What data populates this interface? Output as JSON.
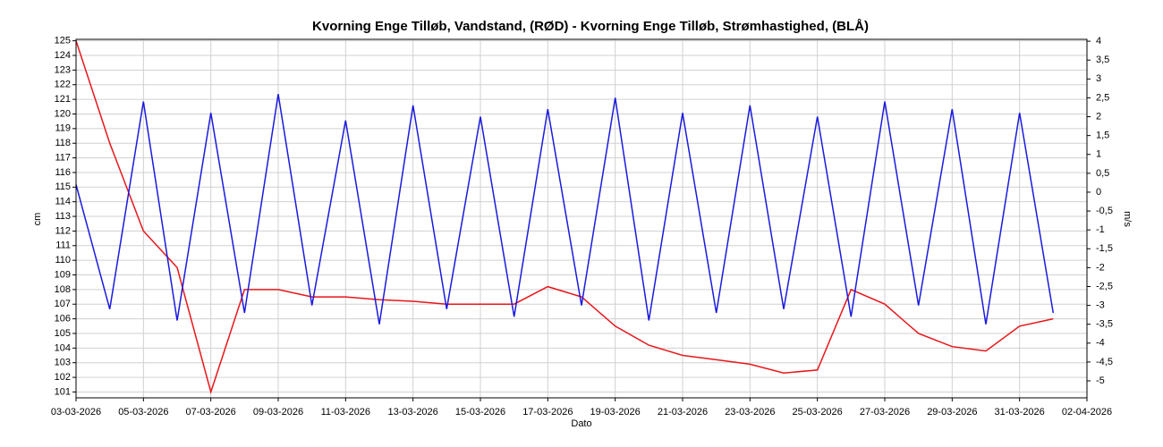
{
  "chart_data": {
    "type": "line",
    "title": "Kvorning Enge Tilløb, Vandstand, (RØD)  -  Kvorning Enge Tilløb, Strømhastighed, (BLÅ)",
    "xlabel": "Dato",
    "ylabel": "cm",
    "y2label": "m/s",
    "grid": true,
    "x": [
      "03-03-2026",
      "04-03-2026",
      "05-03-2026",
      "06-03-2026",
      "07-03-2026",
      "08-03-2026",
      "09-03-2026",
      "10-03-2026",
      "11-03-2026",
      "12-03-2026",
      "13-03-2026",
      "14-03-2026",
      "15-03-2026",
      "16-03-2026",
      "17-03-2026",
      "18-03-2026",
      "19-03-2026",
      "20-03-2026",
      "21-03-2026",
      "22-03-2026",
      "23-03-2026",
      "24-03-2026",
      "25-03-2026",
      "26-03-2026",
      "27-03-2026",
      "28-03-2026",
      "29-03-2026",
      "30-03-2026",
      "31-03-2026",
      "01-04-2026"
    ],
    "xlim": [
      "03-03-2026",
      "02-04-2026"
    ],
    "xticks": [
      "03-03-2026",
      "05-03-2026",
      "07-03-2026",
      "09-03-2026",
      "11-03-2026",
      "13-03-2026",
      "15-03-2026",
      "17-03-2026",
      "19-03-2026",
      "21-03-2026",
      "23-03-2026",
      "25-03-2026",
      "27-03-2026",
      "29-03-2026",
      "31-03-2026",
      "02-04-2026"
    ],
    "ylim": [
      100.6,
      125.1
    ],
    "yticks": [
      101,
      102,
      103,
      104,
      105,
      106,
      107,
      108,
      109,
      110,
      111,
      112,
      113,
      114,
      115,
      116,
      117,
      118,
      119,
      120,
      121,
      122,
      123,
      124,
      125
    ],
    "y2lim": [
      -5.45,
      4.05
    ],
    "y2ticks": [
      {
        "value": -5,
        "label": "-5"
      },
      {
        "value": -4.5,
        "label": "-4,5"
      },
      {
        "value": -4,
        "label": "-4"
      },
      {
        "value": -3.5,
        "label": "-3,5"
      },
      {
        "value": -3,
        "label": "-3"
      },
      {
        "value": -2.5,
        "label": "-2,5"
      },
      {
        "value": -2,
        "label": "-2"
      },
      {
        "value": -1.5,
        "label": "-1,5"
      },
      {
        "value": -1,
        "label": "-1"
      },
      {
        "value": -0.5,
        "label": "-0,5"
      },
      0,
      {
        "value": 0.5,
        "label": "0,5"
      },
      1,
      {
        "value": 1.5,
        "label": "1,5"
      },
      2,
      {
        "value": 2.5,
        "label": "2,5"
      },
      3,
      {
        "value": 3.5,
        "label": "3,5"
      },
      4
    ],
    "series": [
      {
        "name": "Vandstand",
        "color": "#e8161b",
        "values": [
          125,
          118,
          112,
          109.5,
          101,
          108,
          108,
          107.5,
          107.5,
          107.3,
          107.2,
          107,
          107,
          107,
          108.2,
          107.5,
          105.5,
          104.2,
          103.5,
          103.2,
          102.9,
          102.3,
          102.5,
          108,
          107,
          105,
          104.1,
          103.8,
          105.5,
          106
        ]
      },
      {
        "name": "Strømhastighed",
        "color": "#1a1adf",
        "axis": "y2",
        "values": [
          0.2,
          -3.1,
          2.4,
          -3.4,
          2.1,
          -3.2,
          2.6,
          -3.0,
          1.9,
          -3.5,
          2.3,
          -3.1,
          2.0,
          -3.3,
          2.2,
          -3.0,
          2.5,
          -3.4,
          2.1,
          -3.2,
          2.3,
          -3.1,
          2.0,
          -3.3,
          2.4,
          -3.0,
          2.2,
          -3.5,
          2.1,
          -3.2
        ]
      }
    ]
  }
}
